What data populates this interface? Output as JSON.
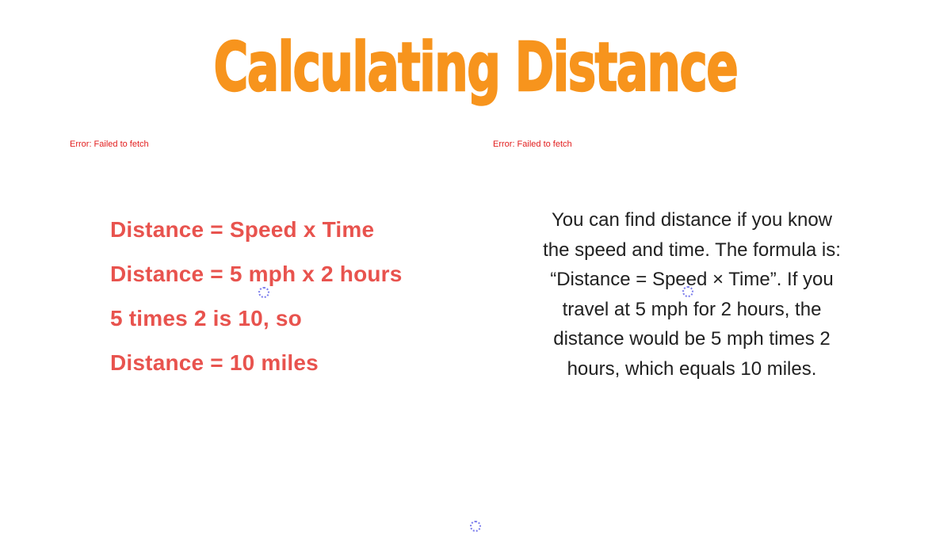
{
  "slide": {
    "title": "Calculating Distance"
  },
  "errors": {
    "left_label": "Error: Failed to fetch",
    "right_label": "Error: Failed to fetch"
  },
  "formula_block": {
    "lines": [
      "Distance = Speed x Time",
      "Distance = 5 mph x 2 hours",
      "5 times 2 is 10, so",
      "Distance = 10 miles"
    ]
  },
  "explanation_block": {
    "full_text": "You can find distance if you know the speed and time. The formula is: “Distance = Speed × Time”. If you travel at 5 mph for 2 hours, the distance would be 5 mph times 2 hours, which equals 10 miles.",
    "lines": [
      "You can find distance if you know",
      "the speed and time. The formula is:",
      "“Distance = Speed × Time”. If you",
      "travel at 5 mph for 2 hours, the",
      "distance would be 5 mph times 2",
      "hours, which equals 10 miles."
    ]
  },
  "colors": {
    "title_orange": "#F7941D",
    "formula_red": "#E8534E",
    "error_red": "#E21D1D",
    "body_text": "#212121",
    "spinner_blue": "#5D5FE8",
    "background": "#FFFFFF"
  }
}
